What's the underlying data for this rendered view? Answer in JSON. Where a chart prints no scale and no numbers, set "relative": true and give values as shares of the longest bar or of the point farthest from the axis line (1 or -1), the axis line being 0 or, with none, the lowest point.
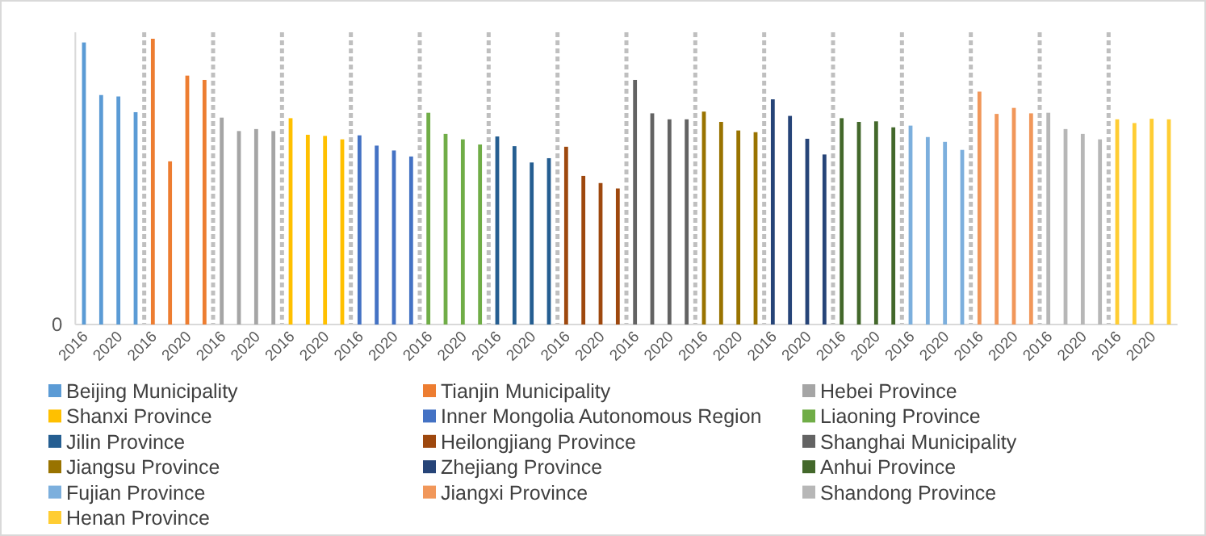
{
  "chart_data": {
    "type": "bar",
    "relative": true,
    "annotations": [
      "0"
    ],
    "legend": "bottom",
    "categories": [
      "2016",
      null,
      "2020",
      null,
      "2016",
      null,
      "2020",
      null,
      "2016",
      null,
      "2020",
      null,
      "2016",
      null,
      "2020",
      null,
      "2016",
      null,
      "2020",
      null,
      "2016",
      null,
      "2020",
      null,
      "2016",
      null,
      "2020",
      null,
      "2016",
      null,
      "2020",
      null,
      "2016",
      null,
      "2020",
      null,
      "2016",
      null,
      "2020",
      null,
      "2016",
      null,
      "2020",
      null,
      "2016",
      null,
      "2020",
      null,
      "2016",
      null,
      "2020",
      null,
      "2016",
      null,
      "2020",
      null,
      "2016",
      null,
      "2020",
      null,
      "2016",
      null,
      "2020",
      null
    ],
    "series": [
      {
        "name": "Beijing Municipality",
        "color": "#5b9bd5",
        "values": [
          0.987,
          0.803,
          0.798,
          0.743,
          null,
          null,
          null,
          null,
          null,
          null,
          null,
          null,
          null,
          null,
          null,
          null,
          null,
          null,
          null,
          null,
          null,
          null,
          null,
          null,
          null,
          null,
          null,
          null,
          null,
          null,
          null,
          null,
          null,
          null,
          null,
          null,
          null,
          null,
          null,
          null,
          null,
          null,
          null,
          null,
          null,
          null,
          null,
          null,
          null,
          null,
          null,
          null,
          null,
          null,
          null,
          null,
          null,
          null,
          null,
          null,
          null,
          null,
          null,
          null
        ]
      },
      {
        "name": "Tianjin Municipality",
        "color": "#ed7d31",
        "values": [
          null,
          null,
          null,
          null,
          1,
          0.571,
          0.871,
          0.856,
          null,
          null,
          null,
          null,
          null,
          null,
          null,
          null,
          null,
          null,
          null,
          null,
          null,
          null,
          null,
          null,
          null,
          null,
          null,
          null,
          null,
          null,
          null,
          null,
          null,
          null,
          null,
          null,
          null,
          null,
          null,
          null,
          null,
          null,
          null,
          null,
          null,
          null,
          null,
          null,
          null,
          null,
          null,
          null,
          null,
          null,
          null,
          null,
          null,
          null,
          null,
          null,
          null,
          null,
          null,
          null
        ]
      },
      {
        "name": "Hebei Province",
        "color": "#a5a5a5",
        "values": [
          null,
          null,
          null,
          null,
          null,
          null,
          null,
          null,
          0.724,
          0.677,
          0.684,
          0.677,
          null,
          null,
          null,
          null,
          null,
          null,
          null,
          null,
          null,
          null,
          null,
          null,
          null,
          null,
          null,
          null,
          null,
          null,
          null,
          null,
          null,
          null,
          null,
          null,
          null,
          null,
          null,
          null,
          null,
          null,
          null,
          null,
          null,
          null,
          null,
          null,
          null,
          null,
          null,
          null,
          null,
          null,
          null,
          null,
          null,
          null,
          null,
          null,
          null,
          null,
          null,
          null
        ]
      },
      {
        "name": "Shanxi Province",
        "color": "#ffc000",
        "values": [
          null,
          null,
          null,
          null,
          null,
          null,
          null,
          null,
          null,
          null,
          null,
          null,
          0.722,
          0.664,
          0.66,
          0.648,
          null,
          null,
          null,
          null,
          null,
          null,
          null,
          null,
          null,
          null,
          null,
          null,
          null,
          null,
          null,
          null,
          null,
          null,
          null,
          null,
          null,
          null,
          null,
          null,
          null,
          null,
          null,
          null,
          null,
          null,
          null,
          null,
          null,
          null,
          null,
          null,
          null,
          null,
          null,
          null,
          null,
          null,
          null,
          null,
          null,
          null,
          null,
          null
        ]
      },
      {
        "name": "Inner Mongolia Autonomous Region",
        "color": "#4472c4",
        "values": [
          null,
          null,
          null,
          null,
          null,
          null,
          null,
          null,
          null,
          null,
          null,
          null,
          null,
          null,
          null,
          null,
          0.662,
          0.626,
          0.609,
          0.588,
          null,
          null,
          null,
          null,
          null,
          null,
          null,
          null,
          null,
          null,
          null,
          null,
          null,
          null,
          null,
          null,
          null,
          null,
          null,
          null,
          null,
          null,
          null,
          null,
          null,
          null,
          null,
          null,
          null,
          null,
          null,
          null,
          null,
          null,
          null,
          null,
          null,
          null,
          null,
          null,
          null,
          null,
          null,
          null
        ]
      },
      {
        "name": "Liaoning Province",
        "color": "#70ad47",
        "values": [
          null,
          null,
          null,
          null,
          null,
          null,
          null,
          null,
          null,
          null,
          null,
          null,
          null,
          null,
          null,
          null,
          null,
          null,
          null,
          null,
          0.741,
          0.667,
          0.648,
          0.63,
          null,
          null,
          null,
          null,
          null,
          null,
          null,
          null,
          null,
          null,
          null,
          null,
          null,
          null,
          null,
          null,
          null,
          null,
          null,
          null,
          null,
          null,
          null,
          null,
          null,
          null,
          null,
          null,
          null,
          null,
          null,
          null,
          null,
          null,
          null,
          null,
          null,
          null,
          null,
          null
        ]
      },
      {
        "name": "Jilin Province",
        "color": "#255e91",
        "values": [
          null,
          null,
          null,
          null,
          null,
          null,
          null,
          null,
          null,
          null,
          null,
          null,
          null,
          null,
          null,
          null,
          null,
          null,
          null,
          null,
          null,
          null,
          null,
          null,
          0.658,
          0.624,
          0.567,
          0.582,
          null,
          null,
          null,
          null,
          null,
          null,
          null,
          null,
          null,
          null,
          null,
          null,
          null,
          null,
          null,
          null,
          null,
          null,
          null,
          null,
          null,
          null,
          null,
          null,
          null,
          null,
          null,
          null,
          null,
          null,
          null,
          null,
          null,
          null,
          null,
          null
        ]
      },
      {
        "name": "Heilongjiang Province",
        "color": "#9e480e",
        "values": [
          null,
          null,
          null,
          null,
          null,
          null,
          null,
          null,
          null,
          null,
          null,
          null,
          null,
          null,
          null,
          null,
          null,
          null,
          null,
          null,
          null,
          null,
          null,
          null,
          null,
          null,
          null,
          null,
          0.622,
          0.52,
          0.495,
          0.476,
          null,
          null,
          null,
          null,
          null,
          null,
          null,
          null,
          null,
          null,
          null,
          null,
          null,
          null,
          null,
          null,
          null,
          null,
          null,
          null,
          null,
          null,
          null,
          null,
          null,
          null,
          null,
          null,
          null,
          null,
          null,
          null
        ]
      },
      {
        "name": "Shanghai Municipality",
        "color": "#636363",
        "values": [
          null,
          null,
          null,
          null,
          null,
          null,
          null,
          null,
          null,
          null,
          null,
          null,
          null,
          null,
          null,
          null,
          null,
          null,
          null,
          null,
          null,
          null,
          null,
          null,
          null,
          null,
          null,
          null,
          null,
          null,
          null,
          null,
          0.856,
          0.739,
          0.718,
          0.718,
          null,
          null,
          null,
          null,
          null,
          null,
          null,
          null,
          null,
          null,
          null,
          null,
          null,
          null,
          null,
          null,
          null,
          null,
          null,
          null,
          null,
          null,
          null,
          null,
          null,
          null,
          null,
          null
        ]
      },
      {
        "name": "Jiangsu Province",
        "color": "#997300",
        "values": [
          null,
          null,
          null,
          null,
          null,
          null,
          null,
          null,
          null,
          null,
          null,
          null,
          null,
          null,
          null,
          null,
          null,
          null,
          null,
          null,
          null,
          null,
          null,
          null,
          null,
          null,
          null,
          null,
          null,
          null,
          null,
          null,
          null,
          null,
          null,
          null,
          0.745,
          0.709,
          0.679,
          0.673,
          null,
          null,
          null,
          null,
          null,
          null,
          null,
          null,
          null,
          null,
          null,
          null,
          null,
          null,
          null,
          null,
          null,
          null,
          null,
          null,
          null,
          null,
          null,
          null
        ]
      },
      {
        "name": "Zhejiang Province",
        "color": "#264478",
        "values": [
          null,
          null,
          null,
          null,
          null,
          null,
          null,
          null,
          null,
          null,
          null,
          null,
          null,
          null,
          null,
          null,
          null,
          null,
          null,
          null,
          null,
          null,
          null,
          null,
          null,
          null,
          null,
          null,
          null,
          null,
          null,
          null,
          null,
          null,
          null,
          null,
          null,
          null,
          null,
          null,
          0.788,
          0.73,
          0.65,
          0.595,
          null,
          null,
          null,
          null,
          null,
          null,
          null,
          null,
          null,
          null,
          null,
          null,
          null,
          null,
          null,
          null,
          null,
          null,
          null,
          null
        ]
      },
      {
        "name": "Anhui Province",
        "color": "#43682b",
        "values": [
          null,
          null,
          null,
          null,
          null,
          null,
          null,
          null,
          null,
          null,
          null,
          null,
          null,
          null,
          null,
          null,
          null,
          null,
          null,
          null,
          null,
          null,
          null,
          null,
          null,
          null,
          null,
          null,
          null,
          null,
          null,
          null,
          null,
          null,
          null,
          null,
          null,
          null,
          null,
          null,
          null,
          null,
          null,
          null,
          0.722,
          0.709,
          0.711,
          0.69,
          null,
          null,
          null,
          null,
          null,
          null,
          null,
          null,
          null,
          null,
          null,
          null,
          null,
          null,
          null,
          null
        ]
      },
      {
        "name": "Fujian Province",
        "color": "#7cafdd",
        "values": [
          null,
          null,
          null,
          null,
          null,
          null,
          null,
          null,
          null,
          null,
          null,
          null,
          null,
          null,
          null,
          null,
          null,
          null,
          null,
          null,
          null,
          null,
          null,
          null,
          null,
          null,
          null,
          null,
          null,
          null,
          null,
          null,
          null,
          null,
          null,
          null,
          null,
          null,
          null,
          null,
          null,
          null,
          null,
          null,
          null,
          null,
          null,
          null,
          0.696,
          0.656,
          0.639,
          0.611,
          null,
          null,
          null,
          null,
          null,
          null,
          null,
          null,
          null,
          null,
          null,
          null
        ]
      },
      {
        "name": "Jiangxi Province",
        "color": "#f1975a",
        "values": [
          null,
          null,
          null,
          null,
          null,
          null,
          null,
          null,
          null,
          null,
          null,
          null,
          null,
          null,
          null,
          null,
          null,
          null,
          null,
          null,
          null,
          null,
          null,
          null,
          null,
          null,
          null,
          null,
          null,
          null,
          null,
          null,
          null,
          null,
          null,
          null,
          null,
          null,
          null,
          null,
          null,
          null,
          null,
          null,
          null,
          null,
          null,
          null,
          null,
          null,
          null,
          null,
          0.815,
          0.737,
          0.758,
          0.739,
          null,
          null,
          null,
          null,
          null,
          null,
          null,
          null
        ]
      },
      {
        "name": "Shandong Province",
        "color": "#b7b7b7",
        "values": [
          null,
          null,
          null,
          null,
          null,
          null,
          null,
          null,
          null,
          null,
          null,
          null,
          null,
          null,
          null,
          null,
          null,
          null,
          null,
          null,
          null,
          null,
          null,
          null,
          null,
          null,
          null,
          null,
          null,
          null,
          null,
          null,
          null,
          null,
          null,
          null,
          null,
          null,
          null,
          null,
          null,
          null,
          null,
          null,
          null,
          null,
          null,
          null,
          null,
          null,
          null,
          null,
          null,
          null,
          null,
          null,
          0.741,
          0.684,
          0.667,
          0.648,
          null,
          null,
          null,
          null
        ]
      },
      {
        "name": "Henan Province",
        "color": "#ffcd33",
        "values": [
          null,
          null,
          null,
          null,
          null,
          null,
          null,
          null,
          null,
          null,
          null,
          null,
          null,
          null,
          null,
          null,
          null,
          null,
          null,
          null,
          null,
          null,
          null,
          null,
          null,
          null,
          null,
          null,
          null,
          null,
          null,
          null,
          null,
          null,
          null,
          null,
          null,
          null,
          null,
          null,
          null,
          null,
          null,
          null,
          null,
          null,
          null,
          null,
          null,
          null,
          null,
          null,
          null,
          null,
          null,
          null,
          null,
          null,
          null,
          null,
          0.718,
          0.705,
          0.72,
          0.718
        ]
      }
    ]
  }
}
